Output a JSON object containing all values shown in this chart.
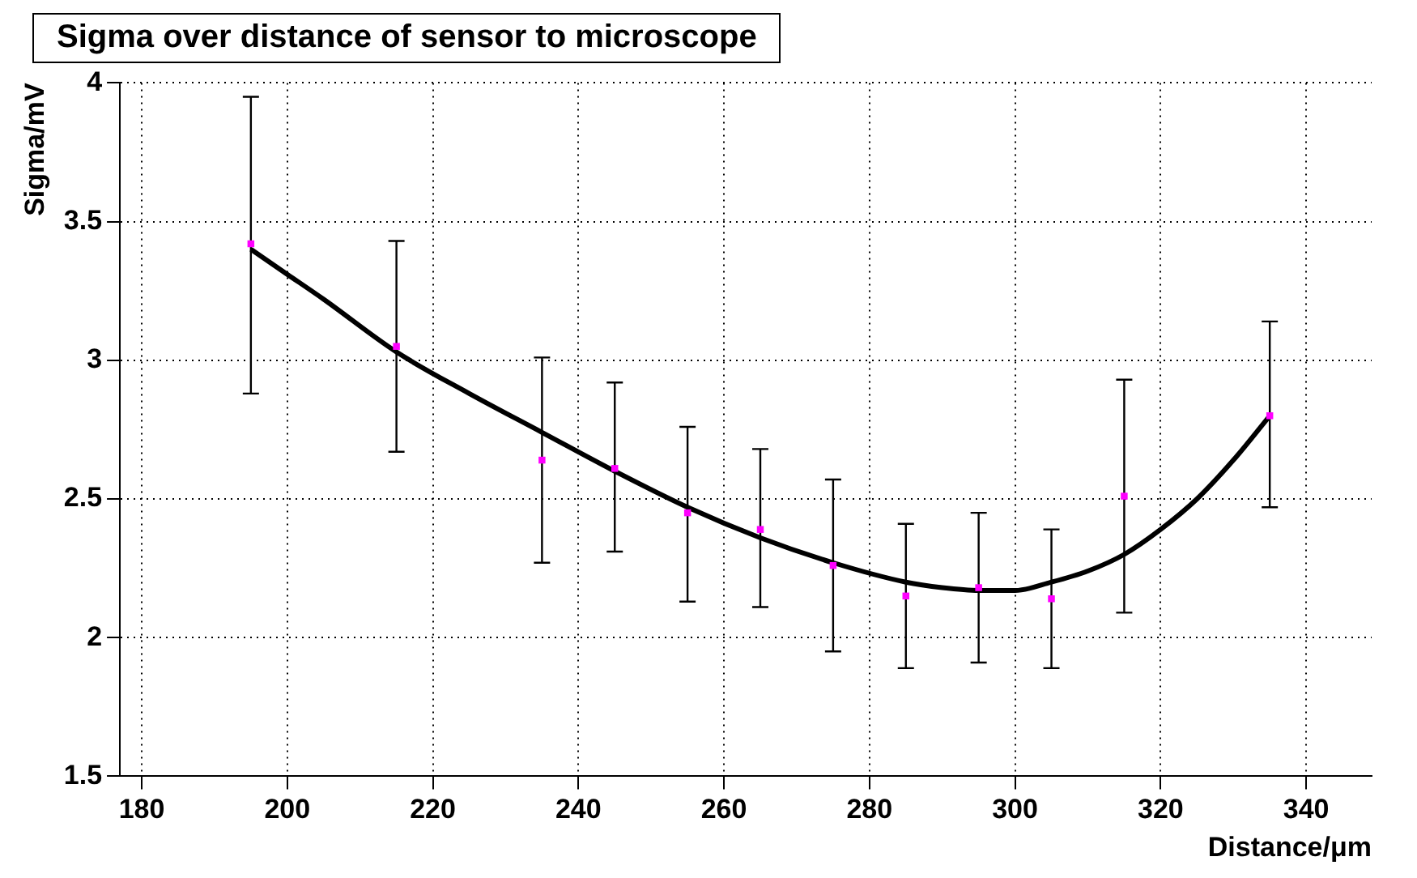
{
  "chart_data": {
    "type": "scatter",
    "title": "Sigma over distance of sensor to microscope",
    "xlabel": "Distance/μm",
    "ylabel": "Sigma/mV",
    "xlim": [
      177,
      349
    ],
    "xticks": [
      180,
      200,
      220,
      240,
      260,
      280,
      300,
      320,
      340
    ],
    "ylim": [
      1.5,
      4
    ],
    "yticks": [
      1.5,
      2,
      2.5,
      3,
      3.5,
      4
    ],
    "grid": true,
    "series": [
      {
        "type": "scatter",
        "marker": "square",
        "color": "#ff00ff",
        "x": [
          195,
          215,
          235,
          245,
          255,
          265,
          275,
          285,
          295,
          305,
          315,
          335
        ],
        "values": [
          3.42,
          3.05,
          2.64,
          2.61,
          2.45,
          2.39,
          2.26,
          2.15,
          2.18,
          2.14,
          2.51,
          2.8
        ],
        "errors": [
          [
            2.88,
            3.95
          ],
          [
            2.67,
            3.43
          ],
          [
            2.27,
            3.01
          ],
          [
            2.31,
            2.92
          ],
          [
            2.13,
            2.76
          ],
          [
            2.11,
            2.68
          ],
          [
            1.95,
            2.57
          ],
          [
            1.89,
            2.41
          ],
          [
            1.91,
            2.45
          ],
          [
            1.89,
            2.39
          ],
          [
            2.09,
            2.93
          ],
          [
            2.47,
            3.14
          ]
        ]
      },
      {
        "type": "line",
        "color": "#000000",
        "x": [
          195,
          200,
          205,
          215,
          225,
          235,
          245,
          255,
          265,
          275,
          285,
          290,
          295,
          300,
          305,
          310,
          315,
          320,
          325,
          330,
          335
        ],
        "values": [
          3.4,
          3.31,
          3.22,
          3.03,
          2.88,
          2.74,
          2.6,
          2.47,
          2.36,
          2.27,
          2.2,
          2.18,
          2.17,
          2.17,
          2.2,
          2.24,
          2.3,
          2.39,
          2.5,
          2.64,
          2.8
        ]
      }
    ]
  }
}
